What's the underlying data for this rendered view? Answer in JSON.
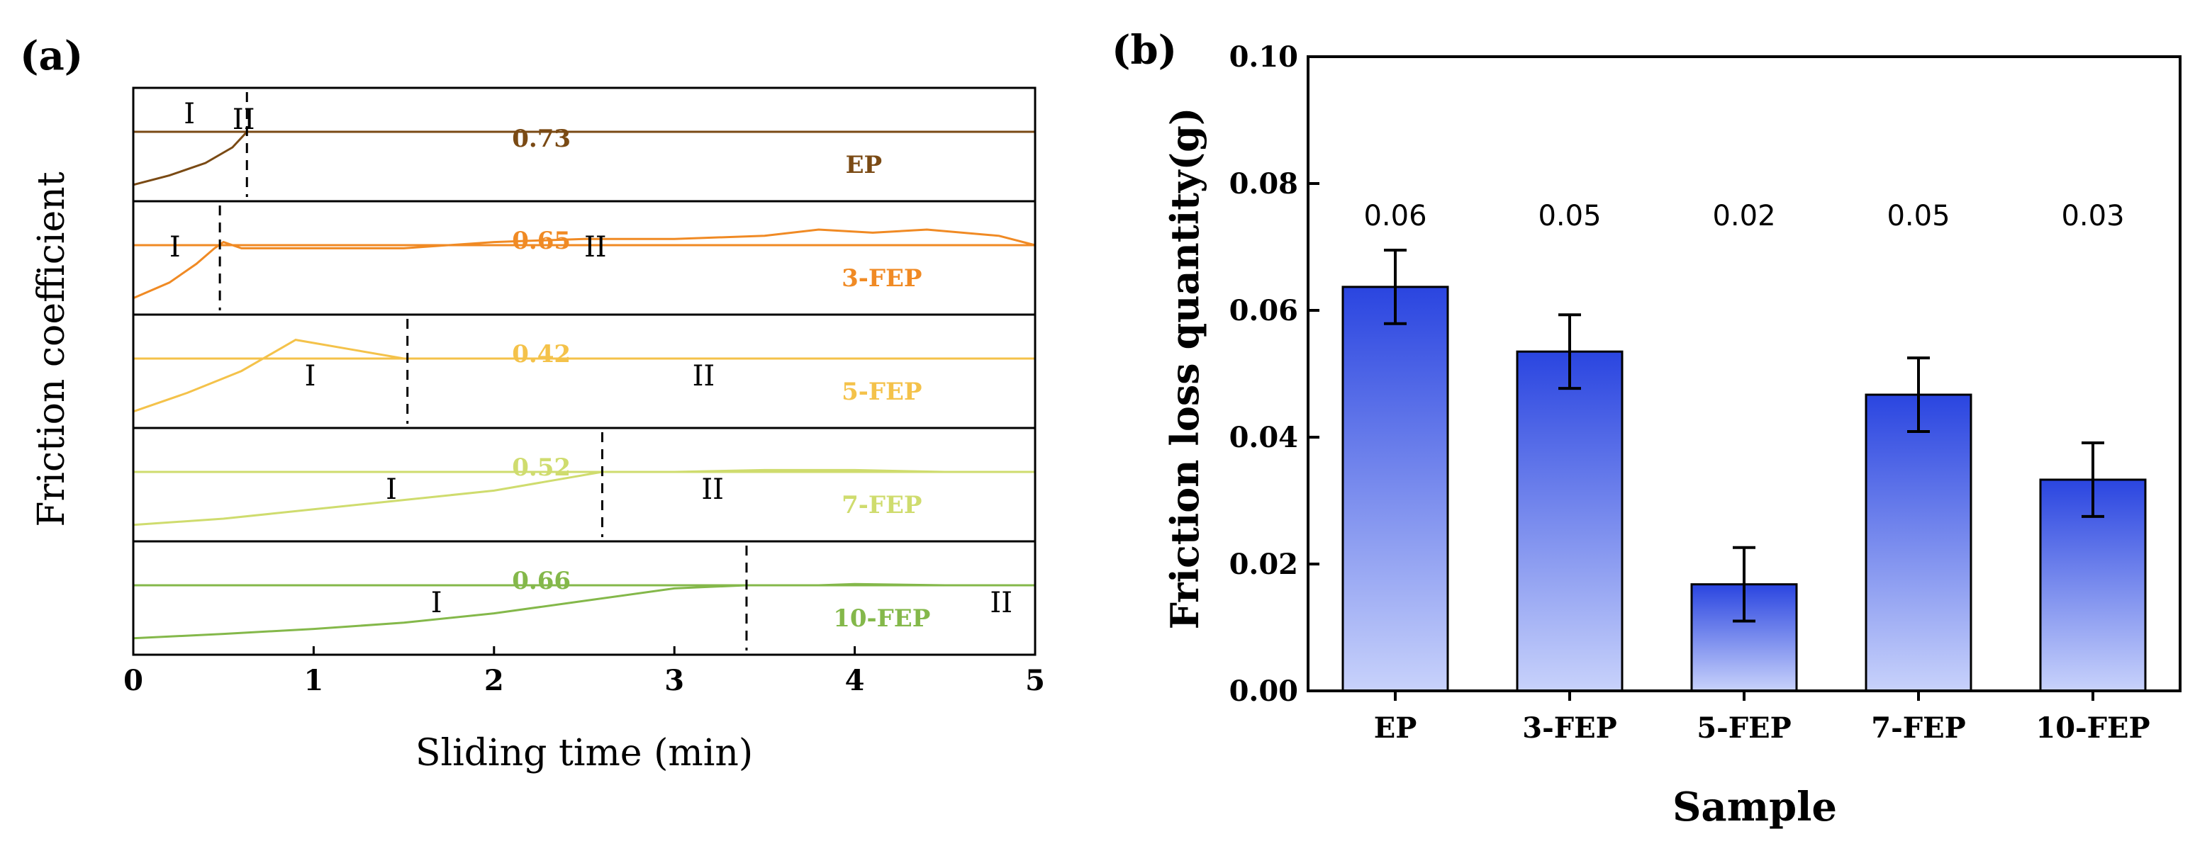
{
  "chart_data": [
    {
      "panel_label": "(a)",
      "type": "line",
      "xlabel": "Sliding time (min)",
      "ylabel": "Friction coefficient",
      "xlim": [
        0,
        5
      ],
      "xticks": [
        "0",
        "1",
        "2",
        "3",
        "4",
        "5"
      ],
      "stage_labels": [
        "I",
        "II"
      ],
      "series": [
        {
          "name": "EP",
          "color": "#7a4a14",
          "avg": "0.73",
          "transition": 0.63,
          "x": [
            0,
            0.2,
            0.4,
            0.55,
            0.63,
            1,
            2,
            3,
            4,
            5
          ],
          "y": [
            0.15,
            0.3,
            0.5,
            0.75,
            1.0,
            1.0,
            1.0,
            1.0,
            1.0,
            1.0
          ]
        },
        {
          "name": "3-FEP",
          "color": "#f08a24",
          "avg": "0.65",
          "transition": 0.48,
          "x": [
            0,
            0.2,
            0.35,
            0.45,
            0.5,
            0.6,
            1,
            1.5,
            2,
            2.5,
            3,
            3.5,
            3.8,
            4.1,
            4.4,
            4.8,
            5
          ],
          "y": [
            0.15,
            0.4,
            0.7,
            0.95,
            1.05,
            0.95,
            0.95,
            0.95,
            1.05,
            1.1,
            1.1,
            1.15,
            1.25,
            1.2,
            1.25,
            1.15,
            1.0
          ]
        },
        {
          "name": "5-FEP",
          "color": "#f4c24a",
          "avg": "0.42",
          "transition": 1.52,
          "x": [
            0,
            0.3,
            0.6,
            0.9,
            1.0,
            1.2,
            1.5,
            2,
            2.5,
            3,
            3.5,
            4,
            4.5,
            5
          ],
          "y": [
            0.15,
            0.45,
            0.8,
            1.3,
            1.25,
            1.15,
            1.0,
            1.0,
            1.0,
            1.0,
            1.0,
            1.0,
            1.0,
            1.0
          ]
        },
        {
          "name": "7-FEP",
          "color": "#cfdc6e",
          "avg": "0.52",
          "transition": 2.6,
          "x": [
            0,
            0.5,
            1,
            1.5,
            2,
            2.3,
            2.6,
            3,
            3.5,
            4,
            4.5,
            5
          ],
          "y": [
            0.15,
            0.25,
            0.4,
            0.55,
            0.7,
            0.85,
            1.0,
            1.0,
            1.03,
            1.03,
            1.0,
            1.0
          ]
        },
        {
          "name": "10-FEP",
          "color": "#84b84a",
          "avg": "0.66",
          "transition": 3.4,
          "x": [
            0,
            0.5,
            1,
            1.5,
            2,
            2.5,
            3,
            3.4,
            3.8,
            4,
            4.5,
            5
          ],
          "y": [
            0.15,
            0.22,
            0.3,
            0.4,
            0.55,
            0.75,
            0.95,
            1.0,
            1.0,
            1.02,
            1.0,
            1.0
          ]
        }
      ]
    },
    {
      "panel_label": "(b)",
      "type": "bar",
      "xlabel": "Sample",
      "ylabel": "Friction loss quantity(g)",
      "categories": [
        "EP",
        "3-FEP",
        "5-FEP",
        "7-FEP",
        "10-FEP"
      ],
      "values": [
        0.0637,
        0.0535,
        0.0168,
        0.0467,
        0.0333
      ],
      "errors": [
        0.0058,
        0.0058,
        0.0058,
        0.0058,
        0.0058
      ],
      "value_labels": [
        "0.06",
        "0.05",
        "0.02",
        "0.05",
        "0.03"
      ],
      "ylim": [
        0,
        0.1
      ],
      "yticks": [
        "0.00",
        "0.02",
        "0.04",
        "0.06",
        "0.08",
        "0.10"
      ],
      "bar_color_top": "#2a45e0",
      "bar_color_bottom": "#c8d2fb"
    }
  ]
}
